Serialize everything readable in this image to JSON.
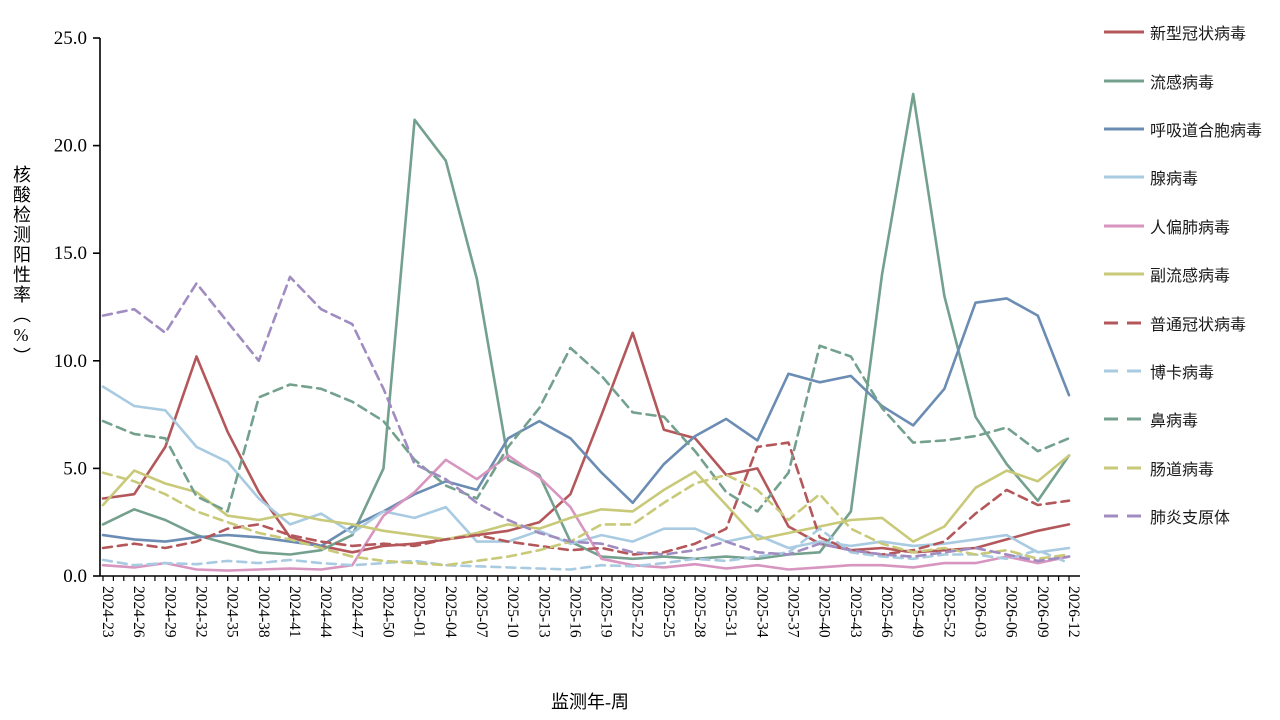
{
  "chart_data": {
    "type": "line",
    "title": "",
    "xlabel": "监测年-周",
    "ylabel": "核酸检测阳性率（%）",
    "ylim": [
      0,
      25
    ],
    "ytick_labels": [
      "0.0",
      "5.0",
      "10.0",
      "15.0",
      "20.0",
      "25.0"
    ],
    "grid": false,
    "legend_position": "right",
    "weeks_per_label": 3,
    "x_labels": [
      "2024-23",
      "2024-26",
      "2024-29",
      "2024-32",
      "2024-35",
      "2024-38",
      "2024-41",
      "2024-44",
      "2024-47",
      "2024-50",
      "2025-01",
      "2025-04",
      "2025-07",
      "2025-10",
      "2025-13",
      "2025-16",
      "2025-19",
      "2025-22",
      "2025-25",
      "2025-28",
      "2025-31",
      "2025-34",
      "2025-37",
      "2025-40",
      "2025-43",
      "2025-46",
      "2025-49",
      "2025-52",
      "2026-03",
      "2026-06",
      "2026-09",
      "2026-12"
    ],
    "series": [
      {
        "name": "新型冠状病毒",
        "color": "#b4575a",
        "dashed": false,
        "values": [
          3.6,
          3.8,
          6.0,
          10.2,
          6.7,
          3.9,
          1.8,
          1.4,
          1.1,
          1.4,
          1.5,
          1.7,
          1.9,
          2.1,
          2.5,
          3.8,
          7.5,
          11.3,
          6.8,
          6.4,
          4.7,
          5.0,
          2.3,
          1.5,
          1.2,
          1.3,
          1.1,
          1.2,
          1.3,
          1.7,
          2.1,
          2.4
        ]
      },
      {
        "name": "流感病毒",
        "color": "#74a08e",
        "dashed": false,
        "values": [
          2.4,
          3.1,
          2.6,
          1.9,
          1.5,
          1.1,
          1.0,
          1.2,
          1.9,
          5.0,
          21.2,
          19.3,
          13.8,
          5.4,
          4.7,
          1.6,
          0.9,
          0.8,
          0.9,
          0.8,
          0.9,
          0.8,
          1.0,
          1.1,
          3.0,
          14.0,
          22.4,
          13.0,
          7.4,
          5.2,
          3.5,
          5.6
        ]
      },
      {
        "name": "呼吸道合胞病毒",
        "color": "#6b8cb3",
        "dashed": false,
        "values": [
          1.9,
          1.7,
          1.6,
          1.8,
          1.9,
          1.8,
          1.6,
          1.4,
          2.3,
          3.0,
          3.8,
          4.4,
          4.0,
          6.4,
          7.2,
          6.4,
          4.8,
          3.4,
          5.2,
          6.5,
          7.3,
          6.3,
          9.4,
          9.0,
          9.3,
          7.9,
          7.0,
          8.7,
          12.7,
          12.9,
          12.1,
          8.4
        ]
      },
      {
        "name": "腺病毒",
        "color": "#a9cbe2",
        "dashed": false,
        "values": [
          8.8,
          7.9,
          7.7,
          6.0,
          5.3,
          3.6,
          2.4,
          2.9,
          2.0,
          3.0,
          2.7,
          3.2,
          1.6,
          1.6,
          2.1,
          1.5,
          1.9,
          1.6,
          2.2,
          2.2,
          1.6,
          1.9,
          1.3,
          1.6,
          1.4,
          1.6,
          1.4,
          1.5,
          1.7,
          1.9,
          1.1,
          1.3
        ]
      },
      {
        "name": "人偏肺病毒",
        "color": "#d795c0",
        "dashed": false,
        "values": [
          0.5,
          0.4,
          0.6,
          0.3,
          0.25,
          0.3,
          0.35,
          0.3,
          0.5,
          2.8,
          3.9,
          5.4,
          4.5,
          5.6,
          4.6,
          3.2,
          0.8,
          0.5,
          0.4,
          0.55,
          0.35,
          0.5,
          0.3,
          0.4,
          0.5,
          0.5,
          0.4,
          0.6,
          0.6,
          0.9,
          0.6,
          0.9
        ]
      },
      {
        "name": "副流感病毒",
        "color": "#c9c97a",
        "dashed": false,
        "values": [
          3.3,
          4.9,
          4.3,
          3.9,
          2.8,
          2.6,
          2.9,
          2.6,
          2.4,
          2.1,
          1.9,
          1.7,
          2.0,
          2.4,
          2.2,
          2.7,
          3.1,
          3.0,
          4.0,
          4.85,
          3.3,
          1.7,
          2.0,
          2.3,
          2.6,
          2.7,
          1.6,
          2.3,
          4.1,
          4.9,
          4.4,
          5.6
        ]
      },
      {
        "name": "普通冠状病毒",
        "color": "#b4575a",
        "dashed": true,
        "values": [
          1.3,
          1.5,
          1.3,
          1.6,
          2.2,
          2.4,
          1.9,
          1.6,
          1.4,
          1.5,
          1.4,
          1.7,
          1.9,
          1.6,
          1.4,
          1.2,
          1.3,
          1.0,
          1.1,
          1.5,
          2.2,
          6.0,
          6.2,
          1.8,
          1.2,
          1.0,
          1.2,
          1.6,
          2.9,
          4.0,
          3.3,
          3.5
        ]
      },
      {
        "name": "博卡病毒",
        "color": "#a9cbe2",
        "dashed": true,
        "values": [
          0.75,
          0.5,
          0.6,
          0.55,
          0.7,
          0.6,
          0.75,
          0.6,
          0.5,
          0.6,
          0.7,
          0.5,
          0.45,
          0.4,
          0.35,
          0.3,
          0.5,
          0.45,
          0.6,
          0.8,
          0.7,
          0.9,
          1.1,
          2.2,
          1.1,
          0.9,
          0.8,
          1.0,
          1.0,
          0.8,
          1.2,
          0.6
        ]
      },
      {
        "name": "鼻病毒",
        "color": "#74a08e",
        "dashed": true,
        "values": [
          7.2,
          6.6,
          6.4,
          3.7,
          3.0,
          8.3,
          8.9,
          8.7,
          8.1,
          7.2,
          5.4,
          4.2,
          3.6,
          6.0,
          7.8,
          10.6,
          9.3,
          7.6,
          7.4,
          5.8,
          3.9,
          3.0,
          4.8,
          10.7,
          10.2,
          7.8,
          6.2,
          6.3,
          6.5,
          6.9,
          5.8,
          6.4
        ]
      },
      {
        "name": "肠道病毒",
        "color": "#c9c97a",
        "dashed": true,
        "values": [
          4.8,
          4.4,
          3.8,
          3.0,
          2.5,
          2.0,
          1.7,
          1.3,
          0.9,
          0.7,
          0.6,
          0.5,
          0.7,
          0.9,
          1.2,
          1.6,
          2.4,
          2.4,
          3.4,
          4.3,
          4.7,
          4.0,
          2.6,
          3.8,
          2.2,
          1.5,
          1.1,
          1.3,
          1.0,
          1.2,
          0.8,
          1.0
        ]
      },
      {
        "name": "肺炎支原体",
        "color": "#a08cc0",
        "dashed": true,
        "values": [
          12.1,
          12.4,
          11.3,
          13.6,
          11.8,
          10.0,
          13.9,
          12.4,
          11.7,
          8.7,
          5.2,
          4.5,
          3.4,
          2.6,
          2.0,
          1.6,
          1.5,
          1.1,
          1.0,
          1.2,
          1.6,
          1.1,
          1.0,
          1.5,
          1.2,
          1.0,
          0.9,
          1.1,
          1.3,
          1.0,
          0.7,
          0.9
        ]
      }
    ]
  }
}
